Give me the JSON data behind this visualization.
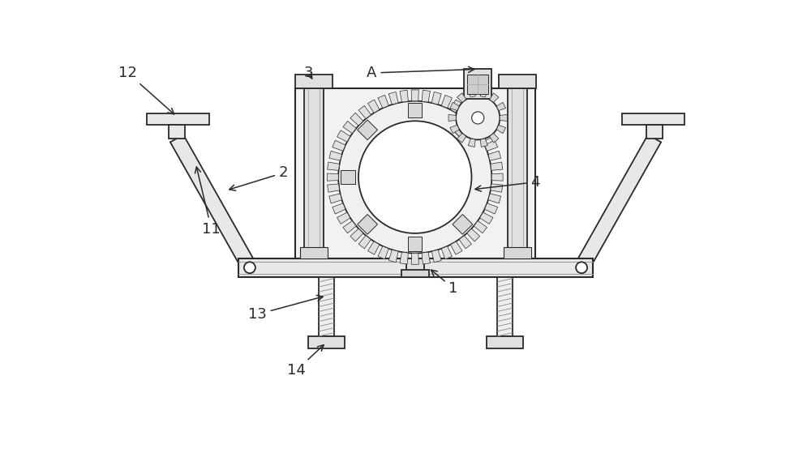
{
  "bg_color": "#ffffff",
  "line_color": "#2a2a2a",
  "fill_light": "#f0f0f0",
  "fill_mid": "#e0e0e0",
  "fill_dark": "#c8c8c8"
}
